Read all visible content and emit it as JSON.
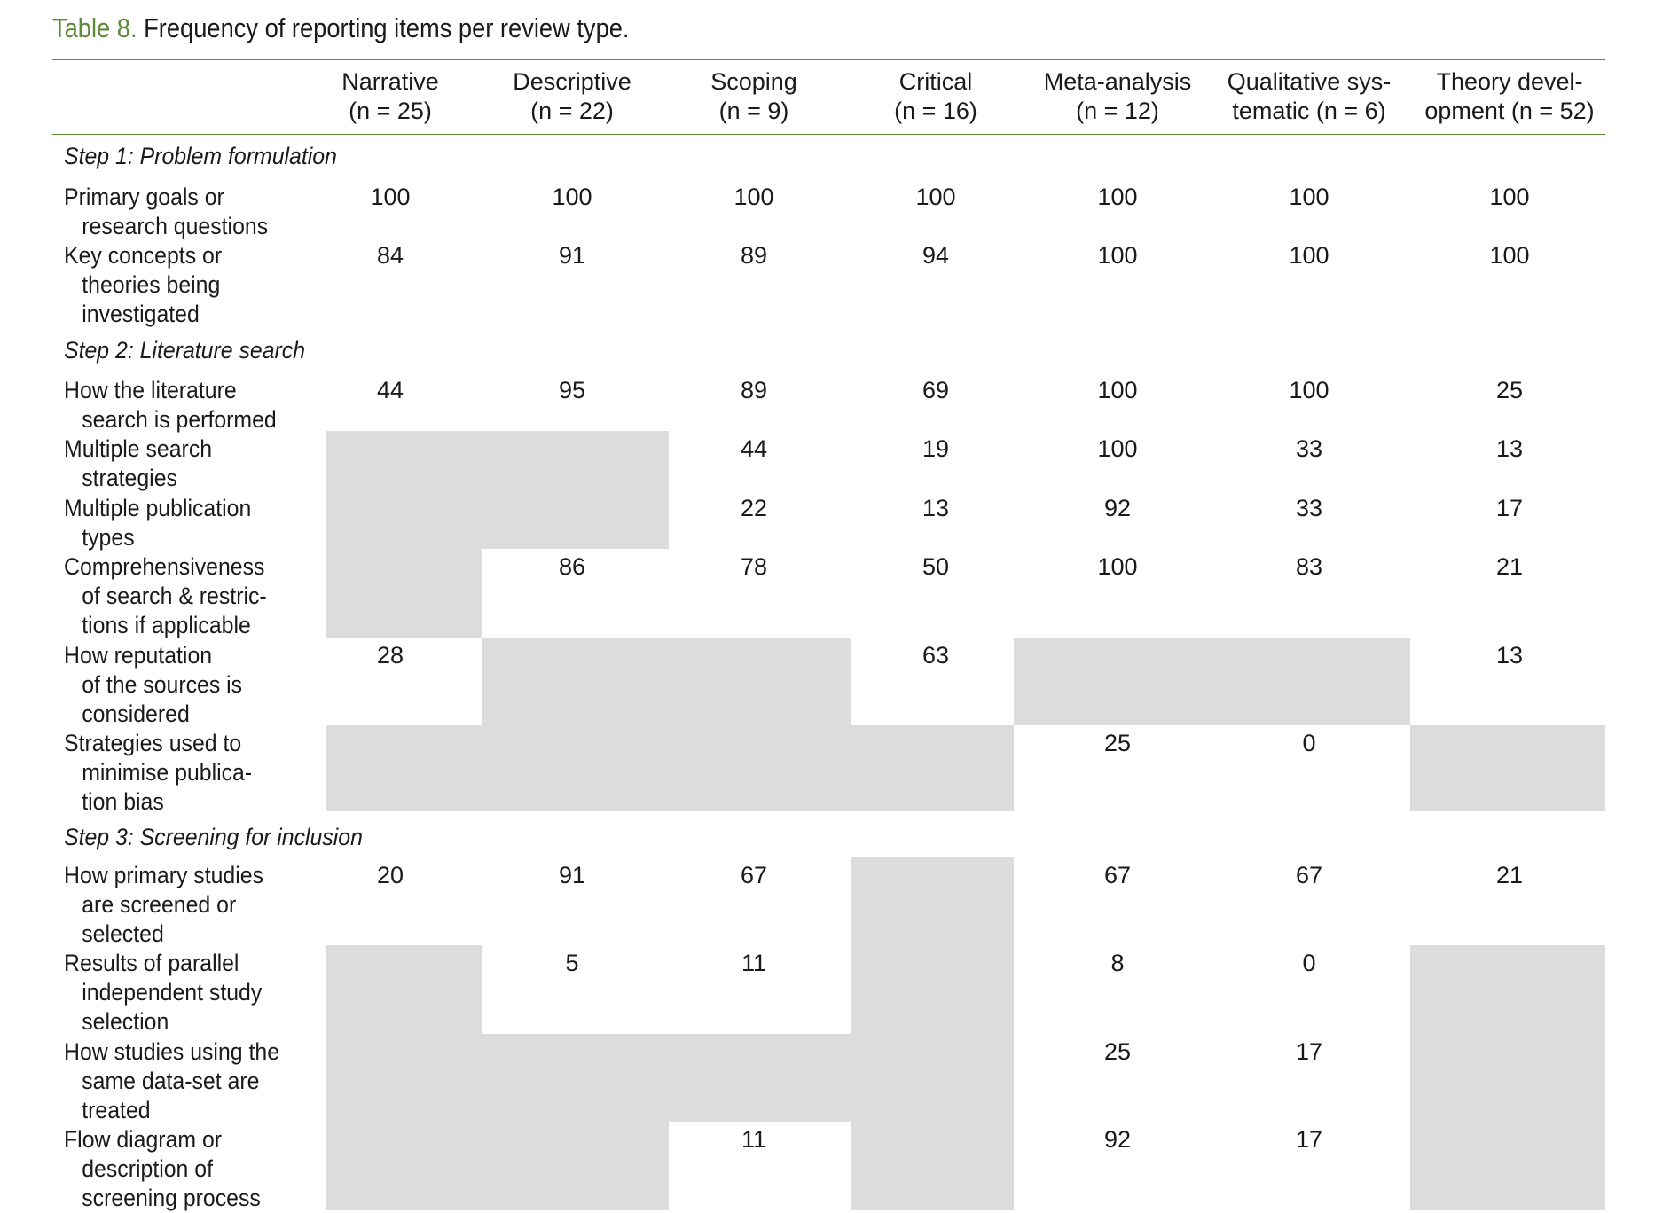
{
  "caption": {
    "label": "Table 8.",
    "text": " Frequency of reporting items per review type."
  },
  "columns": [
    {
      "name": "Narrative",
      "n": "(n = 25)"
    },
    {
      "name": "Descriptive",
      "n": "(n = 22)"
    },
    {
      "name": "Scoping",
      "n": "(n = 9)"
    },
    {
      "name": "Critical",
      "n": "(n = 16)"
    },
    {
      "name": "Meta-analysis",
      "n": "(n = 12)"
    },
    {
      "name": "Qualitative sys-",
      "n": "tematic (n = 6)"
    },
    {
      "name": "Theory devel-",
      "n": "opment (n = 52)"
    }
  ],
  "sections": [
    {
      "title": "Step 1: Problem formulation"
    },
    {
      "title": "Step 2: Literature search"
    },
    {
      "title": "Step 3: Screening for inclusion"
    }
  ],
  "rows": [
    {
      "label": [
        "Primary goals or",
        "research questions"
      ],
      "values": [
        "100",
        "100",
        "100",
        "100",
        "100",
        "100",
        "100"
      ]
    },
    {
      "label": [
        "Key concepts or",
        "theories being",
        "investigated"
      ],
      "values": [
        "84",
        "91",
        "89",
        "94",
        "100",
        "100",
        "100"
      ]
    },
    {
      "label": [
        "How the literature",
        "search is performed"
      ],
      "values": [
        "44",
        "95",
        "89",
        "69",
        "100",
        "100",
        "25"
      ]
    },
    {
      "label": [
        "Multiple search",
        "strategies"
      ],
      "values": [
        "",
        "",
        "44",
        "19",
        "100",
        "33",
        "13"
      ]
    },
    {
      "label": [
        "Multiple publication",
        "types"
      ],
      "values": [
        "",
        "",
        "22",
        "13",
        "92",
        "33",
        "17"
      ]
    },
    {
      "label": [
        "Comprehensiveness",
        "of search & restric-",
        "tions if applicable"
      ],
      "values": [
        "",
        "86",
        "78",
        "50",
        "100",
        "83",
        "21"
      ]
    },
    {
      "label": [
        "How reputation",
        "of the sources is",
        "considered"
      ],
      "values": [
        "28",
        "",
        "",
        "63",
        "",
        "",
        "13"
      ]
    },
    {
      "label": [
        "Strategies used to",
        "minimise publica-",
        "tion bias"
      ],
      "values": [
        "",
        "",
        "",
        "",
        "25",
        "0",
        ""
      ]
    },
    {
      "label": [
        "How primary studies",
        "are screened or",
        "selected"
      ],
      "values": [
        "20",
        "91",
        "67",
        "",
        "67",
        "67",
        "21"
      ]
    },
    {
      "label": [
        "Results of parallel",
        "independent study",
        "selection"
      ],
      "values": [
        "",
        "5",
        "11",
        "",
        "8",
        "0",
        ""
      ]
    },
    {
      "label": [
        "How studies using the",
        "same data-set are",
        "treated"
      ],
      "values": [
        "",
        "",
        "",
        "",
        "25",
        "17",
        ""
      ]
    },
    {
      "label": [
        "Flow diagram or",
        "description of",
        "screening process"
      ],
      "values": [
        "",
        "",
        "11",
        "",
        "92",
        "17",
        ""
      ]
    }
  ],
  "not_reported_shading": [
    [
      false,
      false,
      false,
      false,
      false,
      false,
      false
    ],
    [
      false,
      false,
      false,
      false,
      false,
      false,
      false
    ],
    [
      false,
      false,
      false,
      false,
      false,
      false,
      false
    ],
    [
      true,
      true,
      false,
      false,
      false,
      false,
      false
    ],
    [
      true,
      true,
      false,
      false,
      false,
      false,
      false
    ],
    [
      true,
      false,
      false,
      false,
      false,
      false,
      false
    ],
    [
      false,
      true,
      true,
      false,
      true,
      true,
      false
    ],
    [
      true,
      true,
      true,
      true,
      false,
      false,
      true
    ],
    [
      false,
      false,
      false,
      true,
      false,
      false,
      false
    ],
    [
      true,
      false,
      false,
      true,
      false,
      false,
      true
    ],
    [
      true,
      true,
      true,
      true,
      false,
      false,
      true
    ],
    [
      true,
      true,
      false,
      true,
      false,
      false,
      true
    ]
  ],
  "colors": {
    "accent": "#5f8a3a",
    "shade": "#dcdcdc"
  }
}
